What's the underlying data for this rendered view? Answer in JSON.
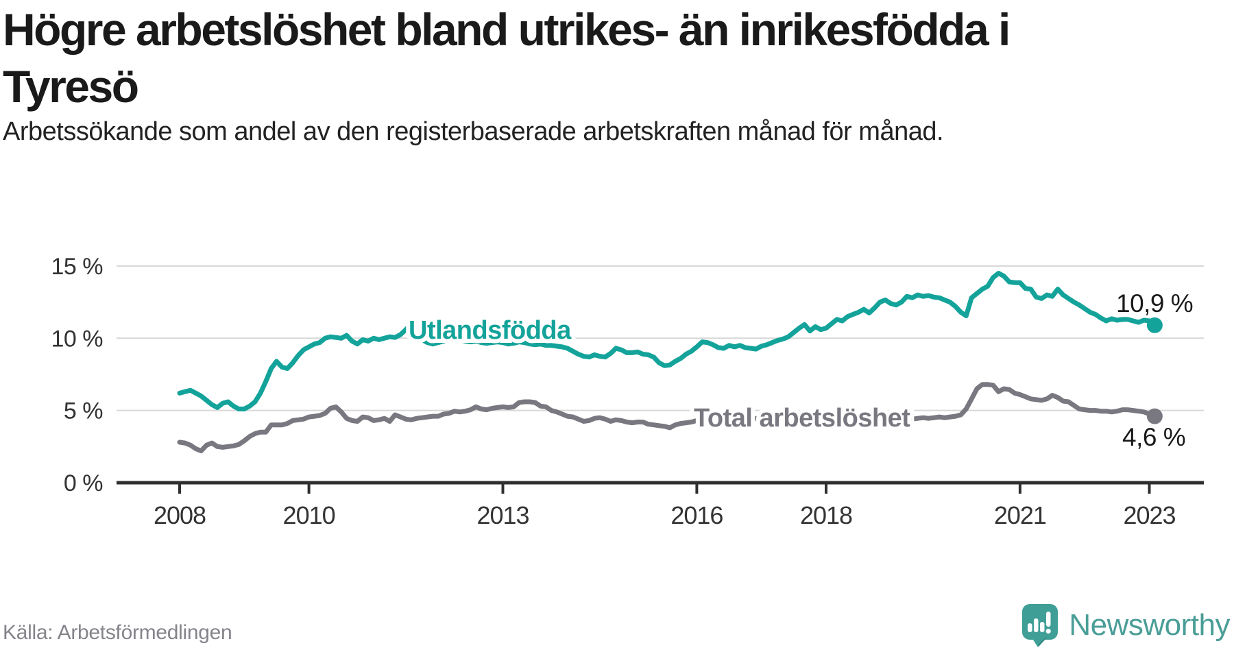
{
  "title": "Högre arbetslöshet bland utrikes- än inrikesfödda i Tyresö",
  "subtitle": "Arbetssökande som andel av den registerbaserade arbetskraften månad för månad.",
  "source": "Källa: Arbetsförmedlingen",
  "logo": {
    "text": "Newsworthy"
  },
  "colors": {
    "foreign_line": "#13a39a",
    "total_line": "#797880",
    "grid": "#d8d8d8",
    "axis": "#2f2f2f",
    "tick_text": "#333333",
    "value_label_text": "#1a1a1a",
    "source_text": "#85848b",
    "logo_teal": "#3f9e96"
  },
  "chart_data": {
    "type": "line",
    "unit": "%",
    "frequency": "monthly",
    "period_start": "2008-01",
    "period_end": "2023-02",
    "grid": true,
    "x_ticks": [
      2008,
      2010,
      2013,
      2016,
      2018,
      2021,
      2023
    ],
    "y_ticks": [
      {
        "value": 0,
        "label": "0 %"
      },
      {
        "value": 5,
        "label": "5 %"
      },
      {
        "value": 10,
        "label": "10 %"
      },
      {
        "value": 15,
        "label": "15 %"
      }
    ],
    "ylim": [
      0,
      15.8
    ],
    "series": [
      {
        "name": "Utlandsfödda",
        "color_key": "foreign_line",
        "end_label": "10,9 %",
        "end_value": 10.9,
        "values": [
          6.2,
          6.3,
          6.4,
          6.2,
          6.0,
          5.7,
          5.4,
          5.2,
          5.5,
          5.6,
          5.3,
          5.1,
          5.1,
          5.3,
          5.6,
          6.2,
          7.0,
          7.9,
          8.4,
          8.0,
          7.9,
          8.3,
          8.8,
          9.2,
          9.4,
          9.6,
          9.7,
          10.0,
          10.1,
          10.05,
          10.0,
          10.2,
          9.8,
          9.6,
          9.9,
          9.8,
          10.0,
          9.9,
          10.0,
          10.1,
          10.05,
          10.25,
          10.6,
          11.0,
          10.3,
          9.9,
          9.7,
          9.6,
          9.7,
          9.8,
          9.9,
          10.0,
          9.9,
          9.8,
          9.75,
          9.8,
          9.7,
          9.65,
          9.7,
          9.75,
          9.7,
          9.6,
          9.65,
          9.75,
          9.7,
          9.6,
          9.55,
          9.6,
          9.5,
          9.5,
          9.45,
          9.4,
          9.3,
          9.1,
          8.9,
          8.75,
          8.7,
          8.85,
          8.75,
          8.7,
          8.95,
          9.3,
          9.2,
          9.0,
          9.0,
          9.05,
          8.9,
          8.85,
          8.7,
          8.3,
          8.1,
          8.15,
          8.4,
          8.6,
          8.9,
          9.1,
          9.4,
          9.75,
          9.7,
          9.55,
          9.35,
          9.3,
          9.5,
          9.4,
          9.5,
          9.35,
          9.3,
          9.25,
          9.45,
          9.55,
          9.7,
          9.85,
          9.95,
          10.1,
          10.4,
          10.7,
          10.95,
          10.5,
          10.8,
          10.6,
          10.7,
          11.0,
          11.3,
          11.2,
          11.5,
          11.65,
          11.8,
          12.0,
          11.75,
          12.1,
          12.5,
          12.65,
          12.4,
          12.3,
          12.5,
          12.9,
          12.8,
          13.0,
          12.9,
          12.95,
          12.85,
          12.8,
          12.65,
          12.5,
          12.2,
          11.8,
          11.55,
          12.8,
          13.1,
          13.4,
          13.6,
          14.2,
          14.5,
          14.3,
          13.9,
          13.85,
          13.85,
          13.45,
          13.4,
          12.85,
          12.75,
          13.0,
          12.9,
          13.4,
          13.0,
          12.75,
          12.5,
          12.3,
          12.05,
          11.8,
          11.65,
          11.4,
          11.2,
          11.35,
          11.25,
          11.3,
          11.3,
          11.2,
          11.1,
          11.25,
          11.2,
          10.9
        ]
      },
      {
        "name": "Total arbetslöshet",
        "color_key": "total_line",
        "end_label": "4,6 %",
        "end_value": 4.6,
        "values": [
          2.8,
          2.75,
          2.6,
          2.35,
          2.2,
          2.6,
          2.75,
          2.5,
          2.45,
          2.5,
          2.55,
          2.65,
          2.9,
          3.2,
          3.4,
          3.5,
          3.5,
          4.0,
          4.0,
          4.0,
          4.1,
          4.3,
          4.35,
          4.4,
          4.55,
          4.6,
          4.65,
          4.8,
          5.15,
          5.25,
          4.9,
          4.45,
          4.3,
          4.25,
          4.55,
          4.5,
          4.3,
          4.35,
          4.45,
          4.25,
          4.7,
          4.55,
          4.4,
          4.35,
          4.45,
          4.5,
          4.55,
          4.6,
          4.6,
          4.75,
          4.8,
          4.95,
          4.9,
          4.95,
          5.05,
          5.25,
          5.1,
          5.05,
          5.15,
          5.2,
          5.25,
          5.2,
          5.25,
          5.55,
          5.6,
          5.6,
          5.55,
          5.3,
          5.25,
          5.0,
          4.9,
          4.75,
          4.6,
          4.55,
          4.4,
          4.25,
          4.3,
          4.45,
          4.5,
          4.4,
          4.25,
          4.35,
          4.3,
          4.2,
          4.15,
          4.2,
          4.2,
          4.05,
          4.0,
          3.95,
          3.9,
          3.8,
          4.0,
          4.1,
          4.15,
          4.2,
          4.3,
          4.4,
          4.55,
          4.4,
          4.55,
          4.4,
          4.45,
          4.45,
          4.4,
          4.45,
          4.4,
          4.45,
          4.4,
          4.35,
          4.4,
          4.45,
          4.4,
          4.35,
          4.3,
          4.35,
          4.4,
          4.35,
          4.3,
          4.35,
          4.3,
          4.35,
          4.4,
          4.35,
          4.3,
          4.25,
          4.3,
          4.35,
          4.3,
          4.35,
          4.4,
          4.35,
          4.4,
          4.35,
          4.4,
          4.45,
          4.4,
          4.45,
          4.5,
          4.45,
          4.5,
          4.55,
          4.5,
          4.55,
          4.6,
          4.7,
          5.1,
          5.8,
          6.5,
          6.8,
          6.8,
          6.75,
          6.3,
          6.5,
          6.45,
          6.2,
          6.1,
          5.95,
          5.8,
          5.75,
          5.7,
          5.8,
          6.05,
          5.9,
          5.65,
          5.6,
          5.35,
          5.1,
          5.05,
          5.0,
          5.0,
          4.95,
          4.95,
          4.9,
          4.95,
          5.05,
          5.05,
          5.0,
          4.95,
          4.9,
          4.75,
          4.6
        ]
      }
    ]
  }
}
